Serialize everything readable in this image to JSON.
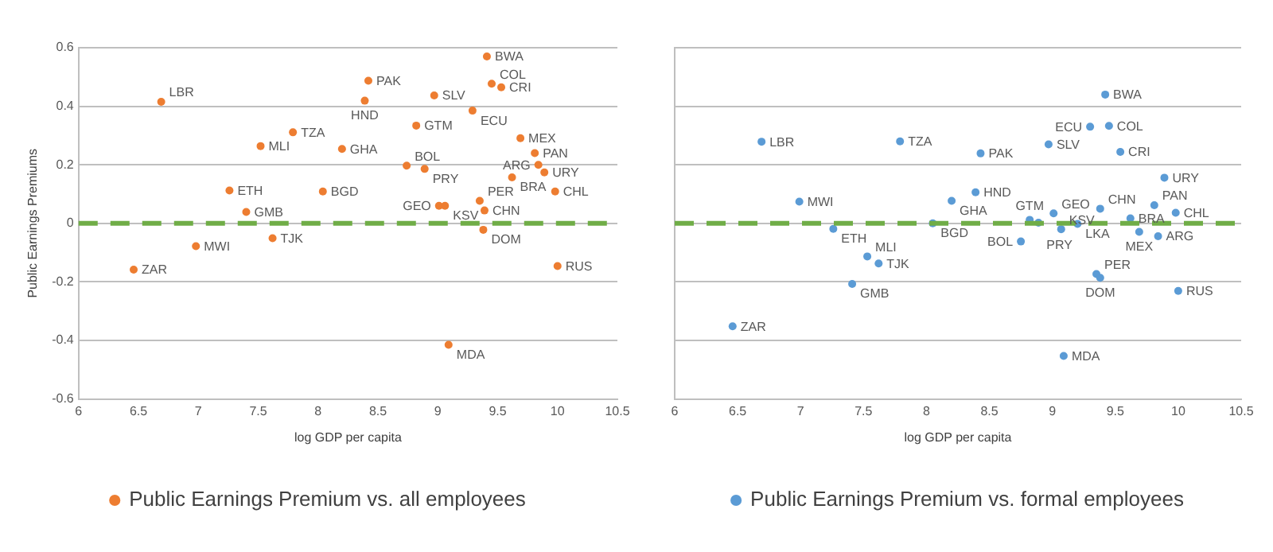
{
  "chart_data": [
    {
      "type": "scatter",
      "xlabel": "log GDP per capita",
      "ylabel": "Public Earnings Premiums",
      "xlim": [
        6,
        10.5
      ],
      "xticks": [
        6,
        6.5,
        7,
        7.5,
        8,
        8.5,
        9,
        9.5,
        10,
        10.5
      ],
      "ylim": [
        -0.6,
        0.6
      ],
      "yticks": [
        -0.6,
        -0.4,
        -0.2,
        0,
        0.2,
        0.4,
        0.6
      ],
      "grid": "y",
      "legend": "bottom",
      "marker": "circle",
      "ref_lines": [
        {
          "axis": "y",
          "value": 0,
          "color": "#70ad47",
          "line_style": "dashed"
        }
      ],
      "series": [
        {
          "name": "Public Earnings Premium vs. all employees",
          "color": "#ed7d31",
          "x": [
            6.69,
            8.42,
            8.39,
            8.97,
            9.41,
            9.45,
            9.53,
            9.29,
            8.82,
            7.79,
            7.52,
            8.2,
            9.69,
            9.81,
            9.84,
            9.89,
            9.62,
            8.74,
            8.89,
            7.26,
            8.04,
            9.98,
            7.4,
            9.01,
            9.06,
            9.35,
            9.39,
            9.38,
            7.62,
            6.98,
            6.46,
            10.0,
            9.09
          ],
          "values": [
            0.415,
            0.487,
            0.419,
            0.437,
            0.57,
            0.477,
            0.465,
            0.385,
            0.334,
            0.311,
            0.264,
            0.254,
            0.291,
            0.24,
            0.2,
            0.174,
            0.157,
            0.197,
            0.186,
            0.112,
            0.109,
            0.109,
            0.039,
            0.06,
            0.06,
            0.077,
            0.044,
            -0.022,
            -0.051,
            -0.078,
            -0.158,
            -0.146,
            -0.415
          ]
        }
      ],
      "annotations": [
        {
          "text": "LBR",
          "x": 6.69,
          "y": 0.415
        },
        {
          "text": "PAK",
          "x": 8.42,
          "y": 0.487
        },
        {
          "text": "HND",
          "x": 8.39,
          "y": 0.419
        },
        {
          "text": "SLV",
          "x": 8.97,
          "y": 0.437
        },
        {
          "text": "BWA",
          "x": 9.41,
          "y": 0.57
        },
        {
          "text": "COL",
          "x": 9.45,
          "y": 0.477
        },
        {
          "text": "CRI",
          "x": 9.53,
          "y": 0.465
        },
        {
          "text": "ECU",
          "x": 9.29,
          "y": 0.385
        },
        {
          "text": "GTM",
          "x": 8.82,
          "y": 0.334
        },
        {
          "text": "TZA",
          "x": 7.79,
          "y": 0.311
        },
        {
          "text": "MLI",
          "x": 7.52,
          "y": 0.264
        },
        {
          "text": "GHA",
          "x": 8.2,
          "y": 0.254
        },
        {
          "text": "MEX",
          "x": 9.69,
          "y": 0.291
        },
        {
          "text": "PAN",
          "x": 9.81,
          "y": 0.24
        },
        {
          "text": "ARG",
          "x": 9.84,
          "y": 0.2
        },
        {
          "text": "URY",
          "x": 9.89,
          "y": 0.174
        },
        {
          "text": "BRA",
          "x": 9.62,
          "y": 0.157
        },
        {
          "text": "BOL",
          "x": 8.74,
          "y": 0.197
        },
        {
          "text": "PRY",
          "x": 8.89,
          "y": 0.186
        },
        {
          "text": "ETH",
          "x": 7.26,
          "y": 0.112
        },
        {
          "text": "BGD",
          "x": 8.04,
          "y": 0.109
        },
        {
          "text": "CHL",
          "x": 9.98,
          "y": 0.109
        },
        {
          "text": "GMB",
          "x": 7.4,
          "y": 0.039
        },
        {
          "text": "GEO",
          "x": 9.01,
          "y": 0.06
        },
        {
          "text": "KSV",
          "x": 9.06,
          "y": 0.06
        },
        {
          "text": "PER",
          "x": 9.35,
          "y": 0.077
        },
        {
          "text": "CHN",
          "x": 9.39,
          "y": 0.044
        },
        {
          "text": "DOM",
          "x": 9.38,
          "y": -0.022
        },
        {
          "text": "TJK",
          "x": 7.62,
          "y": -0.051
        },
        {
          "text": "MWI",
          "x": 6.98,
          "y": -0.078
        },
        {
          "text": "ZAR",
          "x": 6.46,
          "y": -0.158
        },
        {
          "text": "RUS",
          "x": 10.0,
          "y": -0.146
        },
        {
          "text": "MDA",
          "x": 9.09,
          "y": -0.415
        }
      ]
    },
    {
      "type": "scatter",
      "xlabel": "log GDP per capita",
      "xlim": [
        6,
        10.5
      ],
      "xticks": [
        6,
        6.5,
        7,
        7.5,
        8,
        8.5,
        9,
        9.5,
        10,
        10.5
      ],
      "ylim": [
        -0.6,
        0.6
      ],
      "yticks": [
        -0.6,
        -0.4,
        -0.2,
        0,
        0.2,
        0.4,
        0.6
      ],
      "tick_labels": "x",
      "grid": "y",
      "legend": "bottom",
      "marker": "circle",
      "ref_lines": [
        {
          "axis": "y",
          "value": 0,
          "color": "#70ad47",
          "line_style": "dashed"
        }
      ],
      "series": [
        {
          "name": "Public Earnings Premium vs. formal employees",
          "color": "#5b9bd5",
          "x": [
            9.42,
            9.3,
            9.45,
            6.69,
            7.79,
            8.97,
            8.43,
            9.54,
            9.89,
            8.39,
            6.99,
            8.2,
            9.38,
            9.81,
            9.98,
            9.01,
            9.62,
            8.82,
            8.89,
            8.05,
            9.2,
            9.07,
            7.26,
            9.69,
            9.84,
            8.75,
            7.53,
            7.62,
            9.35,
            9.38,
            7.41,
            10.0,
            6.46,
            9.09
          ],
          "values": [
            0.44,
            0.33,
            0.333,
            0.279,
            0.28,
            0.27,
            0.239,
            0.244,
            0.156,
            0.106,
            0.074,
            0.077,
            0.05,
            0.062,
            0.036,
            0.034,
            0.017,
            0.012,
            0.002,
            0.0,
            -0.002,
            -0.02,
            -0.019,
            -0.029,
            -0.044,
            -0.062,
            -0.113,
            -0.137,
            -0.173,
            -0.186,
            -0.207,
            -0.231,
            -0.352,
            -0.453
          ]
        }
      ],
      "annotations": [
        {
          "text": "BWA",
          "x": 9.42,
          "y": 0.44
        },
        {
          "text": "ECU",
          "x": 9.3,
          "y": 0.33
        },
        {
          "text": "COL",
          "x": 9.45,
          "y": 0.333
        },
        {
          "text": "LBR",
          "x": 6.69,
          "y": 0.279
        },
        {
          "text": "TZA",
          "x": 7.79,
          "y": 0.28
        },
        {
          "text": "SLV",
          "x": 8.97,
          "y": 0.27
        },
        {
          "text": "PAK",
          "x": 8.43,
          "y": 0.239
        },
        {
          "text": "CRI",
          "x": 9.54,
          "y": 0.244
        },
        {
          "text": "URY",
          "x": 9.89,
          "y": 0.156
        },
        {
          "text": "HND",
          "x": 8.39,
          "y": 0.106
        },
        {
          "text": "MWI",
          "x": 6.99,
          "y": 0.074
        },
        {
          "text": "GHA",
          "x": 8.2,
          "y": 0.077
        },
        {
          "text": "CHN",
          "x": 9.38,
          "y": 0.05
        },
        {
          "text": "PAN",
          "x": 9.81,
          "y": 0.062
        },
        {
          "text": "CHL",
          "x": 9.98,
          "y": 0.036
        },
        {
          "text": "GEO",
          "x": 9.01,
          "y": 0.034
        },
        {
          "text": "BRA",
          "x": 9.62,
          "y": 0.017
        },
        {
          "text": "GTM",
          "x": 8.82,
          "y": 0.012
        },
        {
          "text": "PRY",
          "x": 8.89,
          "y": 0.002
        },
        {
          "text": "BGD",
          "x": 8.05,
          "y": 0.0
        },
        {
          "text": "LKA",
          "x": 9.2,
          "y": -0.002
        },
        {
          "text": "KSV",
          "x": 9.07,
          "y": -0.02
        },
        {
          "text": "ETH",
          "x": 7.26,
          "y": -0.019
        },
        {
          "text": "MEX",
          "x": 9.69,
          "y": -0.029
        },
        {
          "text": "ARG",
          "x": 9.84,
          "y": -0.044
        },
        {
          "text": "BOL",
          "x": 8.75,
          "y": -0.062
        },
        {
          "text": "MLI",
          "x": 7.53,
          "y": -0.113
        },
        {
          "text": "TJK",
          "x": 7.62,
          "y": -0.137
        },
        {
          "text": "PER",
          "x": 9.35,
          "y": -0.173
        },
        {
          "text": "DOM",
          "x": 9.38,
          "y": -0.186
        },
        {
          "text": "GMB",
          "x": 7.41,
          "y": -0.207
        },
        {
          "text": "RUS",
          "x": 10.0,
          "y": -0.231
        },
        {
          "text": "ZAR",
          "x": 6.46,
          "y": -0.352
        },
        {
          "text": "MDA",
          "x": 9.09,
          "y": -0.453
        }
      ]
    }
  ]
}
